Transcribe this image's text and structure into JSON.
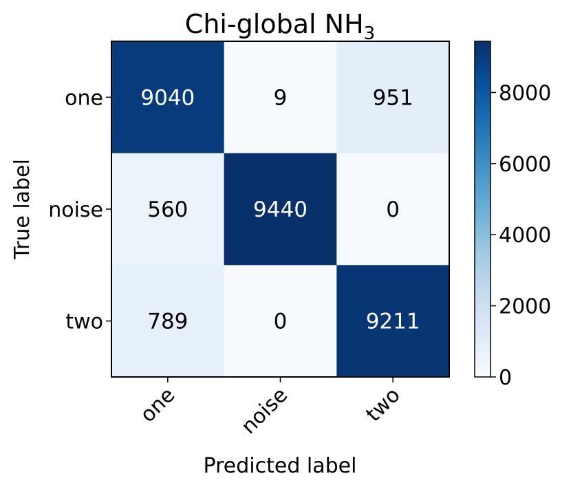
{
  "chart_data": {
    "type": "heatmap",
    "title": "Chi-global NH",
    "title_subscript": "3",
    "xlabel": "Predicted label",
    "ylabel": "True label",
    "x_categories": [
      "one",
      "noise",
      "two"
    ],
    "y_categories": [
      "one",
      "noise",
      "two"
    ],
    "values": [
      [
        9040,
        9,
        951
      ],
      [
        560,
        9440,
        0
      ],
      [
        789,
        0,
        9211
      ]
    ],
    "value_labels": [
      [
        "9040",
        "9",
        "951"
      ],
      [
        "560",
        "9440",
        "0"
      ],
      [
        "789",
        "0",
        "9211"
      ]
    ],
    "colorscale": "Blues",
    "color_range": [
      0,
      9440
    ],
    "colorbar_ticks": [
      0,
      2000,
      4000,
      6000,
      8000
    ],
    "colorbar_tick_labels": [
      "0",
      "2000",
      "4000",
      "6000",
      "8000"
    ],
    "grid": false,
    "colors": {
      "low": "#f7fbff",
      "high": "#08306b",
      "text_dark": "#000000",
      "text_light": "#ffffff"
    }
  }
}
